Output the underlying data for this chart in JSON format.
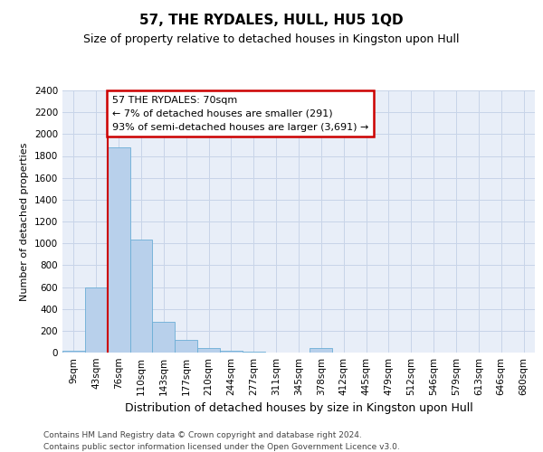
{
  "title": "57, THE RYDALES, HULL, HU5 1QD",
  "subtitle": "Size of property relative to detached houses in Kingston upon Hull",
  "xlabel": "Distribution of detached houses by size in Kingston upon Hull",
  "ylabel": "Number of detached properties",
  "footer_line1": "Contains HM Land Registry data © Crown copyright and database right 2024.",
  "footer_line2": "Contains public sector information licensed under the Open Government Licence v3.0.",
  "categories": [
    "9sqm",
    "43sqm",
    "76sqm",
    "110sqm",
    "143sqm",
    "177sqm",
    "210sqm",
    "244sqm",
    "277sqm",
    "311sqm",
    "345sqm",
    "378sqm",
    "412sqm",
    "445sqm",
    "479sqm",
    "512sqm",
    "546sqm",
    "579sqm",
    "613sqm",
    "646sqm",
    "680sqm"
  ],
  "values": [
    20,
    600,
    1875,
    1035,
    280,
    112,
    42,
    18,
    5,
    2,
    1,
    40,
    0,
    0,
    0,
    0,
    0,
    0,
    0,
    0,
    0
  ],
  "bar_color": "#b8d0eb",
  "bar_edge_color": "#6baed6",
  "vline_x": 1.5,
  "annotation_title": "57 THE RYDALES: 70sqm",
  "annotation_line2": "← 7% of detached houses are smaller (291)",
  "annotation_line3": "93% of semi-detached houses are larger (3,691) →",
  "annotation_box_color": "#cc0000",
  "annotation_box_fill": "#ffffff",
  "vline_color": "#cc0000",
  "ylim": [
    0,
    2400
  ],
  "yticks": [
    0,
    200,
    400,
    600,
    800,
    1000,
    1200,
    1400,
    1600,
    1800,
    2000,
    2200,
    2400
  ],
  "grid_color": "#c8d4e8",
  "background_color": "#e8eef8",
  "fig_background": "#ffffff",
  "title_fontsize": 11,
  "subtitle_fontsize": 9,
  "ylabel_fontsize": 8,
  "xlabel_fontsize": 9,
  "tick_fontsize": 7.5,
  "footer_fontsize": 6.5
}
